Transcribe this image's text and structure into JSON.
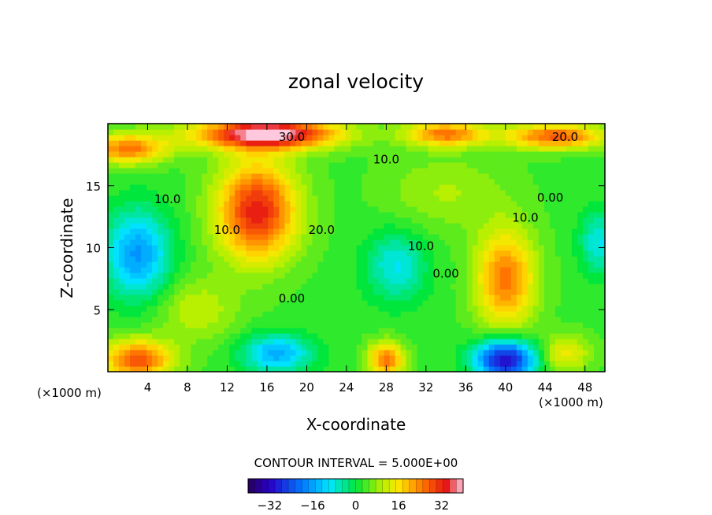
{
  "chart_data": {
    "type": "heatmap",
    "title": "zonal velocity",
    "xlabel": "X-coordinate",
    "ylabel": "Z-coordinate",
    "x_units": "(×1000 m)",
    "y_units": "(×1000 m)",
    "xlim": [
      0,
      50
    ],
    "ylim": [
      0,
      20
    ],
    "x_ticks": [
      4,
      8,
      12,
      16,
      20,
      24,
      28,
      32,
      36,
      40,
      44,
      48
    ],
    "y_ticks": [
      5,
      10,
      15
    ],
    "contour_interval_text": "CONTOUR INTERVAL = 5.000E+00",
    "colorbar": {
      "min": -40,
      "max": 40,
      "ticks": [
        -32,
        -16,
        0,
        16,
        32
      ],
      "tick_labels": [
        "−32",
        "−16",
        "0",
        "16",
        "32"
      ]
    },
    "contour_labels": [
      {
        "text": "30.0",
        "x": 18.5,
        "y": 18.6
      },
      {
        "text": "20.0",
        "x": 46.0,
        "y": 18.6
      },
      {
        "text": "10.0",
        "x": 28.0,
        "y": 16.8
      },
      {
        "text": "10.0",
        "x": 6.0,
        "y": 13.6
      },
      {
        "text": "10.0",
        "x": 12.0,
        "y": 11.1
      },
      {
        "text": "20.0",
        "x": 21.5,
        "y": 11.1
      },
      {
        "text": "0.00",
        "x": 44.5,
        "y": 13.7
      },
      {
        "text": "10.0",
        "x": 42.0,
        "y": 12.1
      },
      {
        "text": "10.0",
        "x": 31.5,
        "y": 9.8
      },
      {
        "text": "0.00",
        "x": 34.0,
        "y": 7.6
      },
      {
        "text": "0.00",
        "x": 18.5,
        "y": 5.6
      }
    ],
    "features": [
      {
        "x": 15,
        "y": 13,
        "value": 30,
        "sx": 4,
        "sy": 4
      },
      {
        "x": 16,
        "y": 19.2,
        "value": 38,
        "sx": 7,
        "sy": 1.2
      },
      {
        "x": 34,
        "y": 19.2,
        "value": 22,
        "sx": 4,
        "sy": 1.0
      },
      {
        "x": 45,
        "y": 19.0,
        "value": 24,
        "sx": 5,
        "sy": 1.0
      },
      {
        "x": 2,
        "y": 18.0,
        "value": 22,
        "sx": 4,
        "sy": 1.2
      },
      {
        "x": 3,
        "y": 9.5,
        "value": -20,
        "sx": 3.2,
        "sy": 3.5
      },
      {
        "x": 29,
        "y": 8.5,
        "value": -12,
        "sx": 3,
        "sy": 2.8
      },
      {
        "x": 17,
        "y": 1.5,
        "value": -18,
        "sx": 3.5,
        "sy": 1.5
      },
      {
        "x": 40,
        "y": 7.5,
        "value": 22,
        "sx": 3,
        "sy": 4
      },
      {
        "x": 40,
        "y": 1.0,
        "value": -36,
        "sx": 3,
        "sy": 1.6
      },
      {
        "x": 49.5,
        "y": 10.5,
        "value": -12,
        "sx": 2,
        "sy": 2.5
      },
      {
        "x": 3,
        "y": 1.0,
        "value": 25,
        "sx": 3.5,
        "sy": 1.6
      },
      {
        "x": 28,
        "y": 1.0,
        "value": 22,
        "sx": 1.8,
        "sy": 1.4
      },
      {
        "x": 46,
        "y": 1.5,
        "value": 12,
        "sx": 2.5,
        "sy": 1.5
      },
      {
        "x": 34,
        "y": 14.5,
        "value": 6,
        "sx": 6,
        "sy": 3
      },
      {
        "x": 9,
        "y": 5,
        "value": 8,
        "sx": 4,
        "sy": 2.5
      }
    ]
  }
}
